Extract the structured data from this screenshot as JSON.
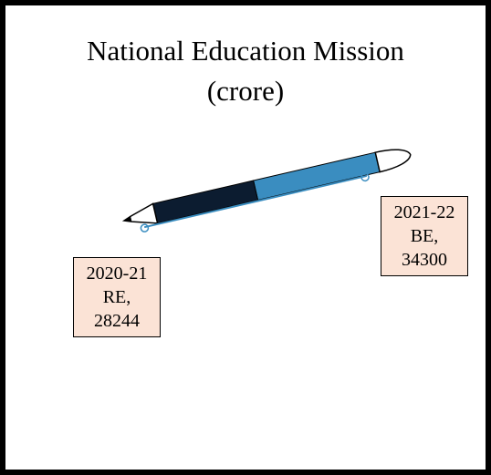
{
  "chart_data": {
    "type": "pen",
    "title": "National Education Mission (crore)",
    "values": [
      28244,
      34300
    ],
    "value_labels": [
      "2020-21 RE, 28244",
      "2021-22 BE, 34300"
    ],
    "colors": [
      "#0c1c30",
      "#3a8dc0"
    ]
  }
}
